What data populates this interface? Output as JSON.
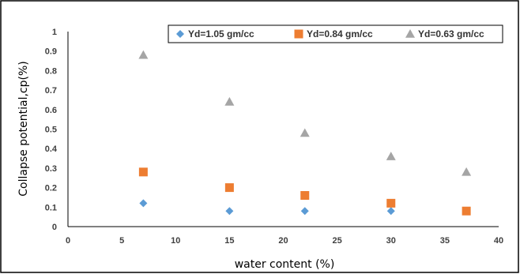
{
  "chart_data": {
    "type": "scatter",
    "xlabel": "water content (%)",
    "ylabel": "Collapse potential,cp(%)",
    "xlim": [
      0,
      40
    ],
    "ylim": [
      0,
      1
    ],
    "x_ticks": [
      0,
      5,
      10,
      15,
      20,
      25,
      30,
      35,
      40
    ],
    "y_ticks": [
      0,
      0.1,
      0.2,
      0.3,
      0.4,
      0.5,
      0.6,
      0.7,
      0.8,
      0.9,
      1
    ],
    "grid": false,
    "legend_position": "top-right",
    "series": [
      {
        "name": "Yd=1.05 gm/cc",
        "marker": "diamond",
        "color": "#5B9BD5",
        "points": [
          [
            7,
            0.12
          ],
          [
            15,
            0.08
          ],
          [
            22,
            0.08
          ],
          [
            30,
            0.08
          ]
        ]
      },
      {
        "name": "Yd=0.84 gm/cc",
        "marker": "square",
        "color": "#ED7D31",
        "points": [
          [
            7,
            0.28
          ],
          [
            15,
            0.2
          ],
          [
            22,
            0.16
          ],
          [
            30,
            0.12
          ],
          [
            37,
            0.08
          ]
        ]
      },
      {
        "name": "Yd=0.63 gm/cc",
        "marker": "triangle",
        "color": "#A5A5A5",
        "points": [
          [
            7,
            0.88
          ],
          [
            15,
            0.64
          ],
          [
            22,
            0.48
          ],
          [
            30,
            0.36
          ],
          [
            37,
            0.28
          ]
        ]
      }
    ]
  }
}
